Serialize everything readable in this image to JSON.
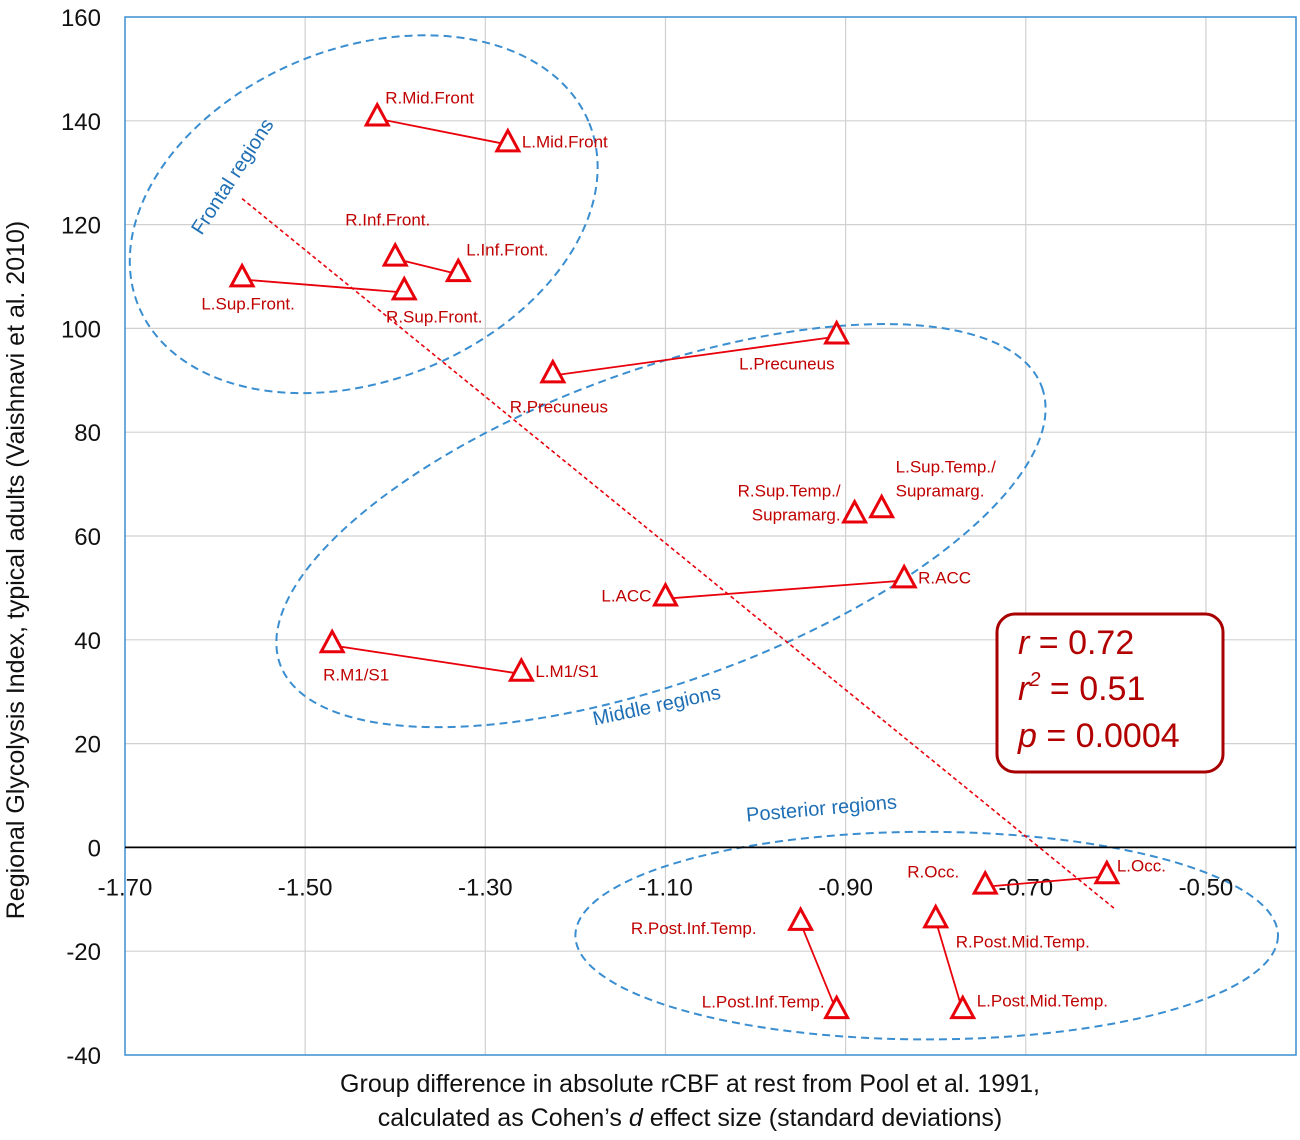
{
  "chart_data": {
    "type": "scatter",
    "xlabel_line1": "Group difference in absolute rCBF at rest from Pool et al. 1991,",
    "xlabel_line2_pre": "calculated as Cohen’s ",
    "xlabel_line2_italic": "d",
    "xlabel_line2_post": " effect size (standard deviations)",
    "ylabel": "Regional Glycolysis Index, typical adults (Vaishnavi et al. 2010)",
    "xlim": [
      -1.7,
      -0.4
    ],
    "ylim": [
      -40,
      160
    ],
    "x_ticks": [
      -1.7,
      -1.5,
      -1.3,
      -1.1,
      -0.9,
      -0.7,
      -0.5
    ],
    "x_tick_labels": [
      "-1.70",
      "-1.50",
      "-1.30",
      "-1.10",
      "-0.90",
      "-0.70",
      "-0.50"
    ],
    "y_ticks": [
      -40,
      -20,
      0,
      20,
      40,
      60,
      80,
      100,
      120,
      140,
      160
    ],
    "y_tick_labels": [
      "-40",
      "-20",
      "0",
      "20",
      "40",
      "60",
      "80",
      "100",
      "120",
      "140",
      "160"
    ],
    "points": [
      {
        "id": "R.Mid.Front",
        "label": "R.Mid.Front",
        "x": -1.42,
        "y": 141,
        "anchor": "start"
      },
      {
        "id": "L.Mid.Front",
        "label": "L.Mid.Front",
        "x": -1.275,
        "y": 136,
        "anchor": "start"
      },
      {
        "id": "R.Inf.Front.",
        "label": "R.Inf.Front.",
        "x": -1.4,
        "y": 114,
        "anchor": "middle"
      },
      {
        "id": "L.Inf.Front.",
        "label": "L.Inf.Front.",
        "x": -1.33,
        "y": 111,
        "anchor": "start"
      },
      {
        "id": "L.Sup.Front.",
        "label": "L.Sup.Front.",
        "x": -1.57,
        "y": 110,
        "anchor": "middle"
      },
      {
        "id": "R.Sup.Front.",
        "label": "R.Sup.Front.",
        "x": -1.39,
        "y": 107.5,
        "anchor": "middle"
      },
      {
        "id": "L.Precuneus",
        "label": "L.Precuneus",
        "x": -0.91,
        "y": 99,
        "anchor": "end"
      },
      {
        "id": "R.Precuneus",
        "label": "R.Precuneus",
        "x": -1.225,
        "y": 91.5,
        "anchor": "middle"
      },
      {
        "id": "L.Sup.Temp.",
        "label_lines": [
          "L.Sup.Temp./",
          "Supramarg."
        ],
        "x": -0.86,
        "y": 65.5,
        "anchor": "start"
      },
      {
        "id": "R.Sup.Temp.",
        "label_lines": [
          "R.Sup.Temp./",
          "Supramarg."
        ],
        "x": -0.89,
        "y": 64.5,
        "anchor": "end"
      },
      {
        "id": "R.ACC",
        "label": "R.ACC",
        "x": -0.835,
        "y": 52,
        "anchor": "start"
      },
      {
        "id": "L.ACC",
        "label": "L.ACC",
        "x": -1.1,
        "y": 48.5,
        "anchor": "end"
      },
      {
        "id": "R.M1/S1",
        "label": "R.M1/S1",
        "x": -1.47,
        "y": 39.5,
        "anchor": "middle"
      },
      {
        "id": "L.M1/S1",
        "label": "L.M1/S1",
        "x": -1.26,
        "y": 34,
        "anchor": "start"
      },
      {
        "id": "L.Occ.",
        "label": "L.Occ.",
        "x": -0.61,
        "y": -5,
        "anchor": "start"
      },
      {
        "id": "R.Occ.",
        "label": "R.Occ.",
        "x": -0.745,
        "y": -7,
        "anchor": "end"
      },
      {
        "id": "R.Post.Inf.Temp.",
        "label": "R.Post.Inf.Temp.",
        "x": -0.95,
        "y": -14,
        "anchor": "end"
      },
      {
        "id": "R.Post.Mid.Temp.",
        "label": "R.Post.Mid.Temp.",
        "x": -0.8,
        "y": -13.5,
        "anchor": "start"
      },
      {
        "id": "L.Post.Inf.Temp.",
        "label": "L.Post.Inf.Temp.",
        "x": -0.91,
        "y": -31,
        "anchor": "end"
      },
      {
        "id": "L.Post.Mid.Temp.",
        "label": "L.Post.Mid.Temp.",
        "x": -0.77,
        "y": -31,
        "anchor": "start"
      }
    ],
    "pairs": [
      [
        "R.Mid.Front",
        "L.Mid.Front"
      ],
      [
        "R.Inf.Front.",
        "L.Inf.Front."
      ],
      [
        "L.Sup.Front.",
        "R.Sup.Front."
      ],
      [
        "R.Precuneus",
        "L.Precuneus"
      ],
      [
        "L.ACC",
        "R.ACC"
      ],
      [
        "R.M1/S1",
        "L.M1/S1"
      ],
      [
        "R.Occ.",
        "L.Occ."
      ],
      [
        "R.Post.Inf.Temp.",
        "L.Post.Inf.Temp."
      ],
      [
        "R.Post.Mid.Temp.",
        "L.Post.Mid.Temp."
      ]
    ],
    "trend_line": {
      "x": [
        -1.57,
        -0.6
      ],
      "y": [
        125,
        -12
      ]
    },
    "regions": [
      {
        "id": "frontal",
        "label": "Frontal regions",
        "center": [
          -1.435,
          122
        ],
        "radius_x": 0.27,
        "radius_y": 32,
        "rotation": -22
      },
      {
        "id": "middle",
        "label": "Middle regions",
        "center": [
          -1.105,
          62
        ],
        "radius_x": 0.45,
        "radius_y": 30,
        "rotation": -20
      },
      {
        "id": "posterior",
        "label": "Posterior regions",
        "center": [
          -0.81,
          -17
        ],
        "radius_x": 0.39,
        "radius_y": 20,
        "rotation": 0
      }
    ],
    "stats": {
      "r_label": "r",
      "r_value": " = 0.72",
      "r2_label": "r",
      "r2_sup": "2",
      "r2_value": " = 0.51",
      "p_label": "p",
      "p_value": " = 0.0004"
    }
  },
  "colors": {
    "marker": "#e8000b",
    "line": "#e8000b",
    "label": "#c00000",
    "region": "#3a8ed0",
    "region_text": "#1f6fb5",
    "stats_border": "#a80000",
    "stats_text": "#b20000",
    "grid": "#d0d0d0",
    "plot_border": "#3a8ed0"
  }
}
